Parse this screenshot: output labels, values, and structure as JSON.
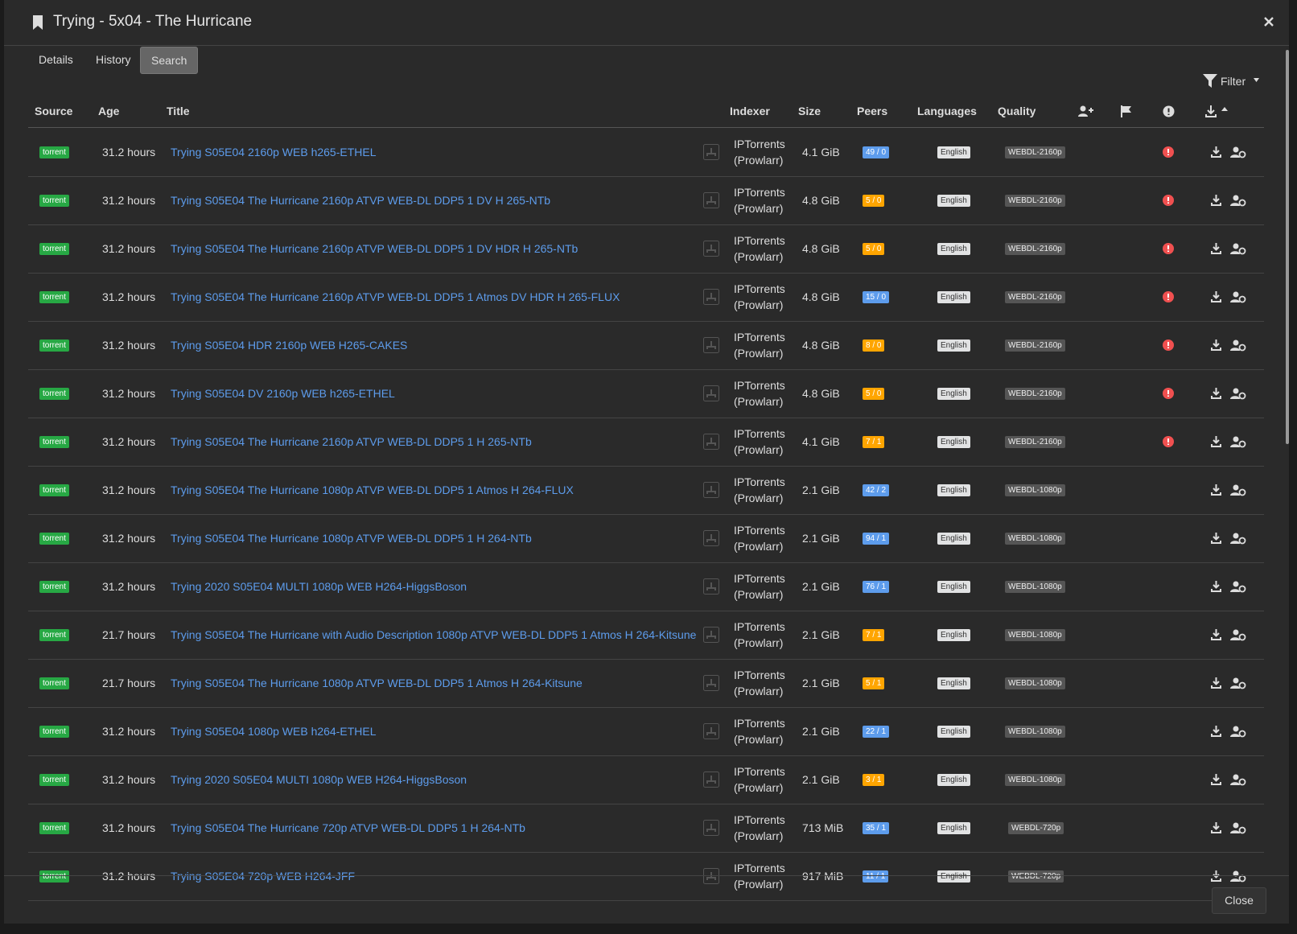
{
  "header": {
    "title": "Trying - 5x04 - The Hurricane"
  },
  "tabs": [
    "Details",
    "History",
    "Search"
  ],
  "filter": "Filter",
  "columns": [
    "Source",
    "Age",
    "Title",
    "Indexer",
    "Size",
    "Peers",
    "Languages",
    "Quality"
  ],
  "rows": [
    {
      "source": "torrent",
      "age": "31.2 hours",
      "title": "Trying S05E04 2160p WEB h265-ETHEL",
      "indexer": "IPTorrents (Prowlarr)",
      "size": "4.1 GiB",
      "peers": "49 / 0",
      "peers_color": "#5d9cec",
      "language": "English",
      "quality": "WEBDL-2160p",
      "rejected": true
    },
    {
      "source": "torrent",
      "age": "31.2 hours",
      "title": "Trying S05E04 The Hurricane 2160p ATVP WEB-DL DDP5 1 DV H 265-NTb",
      "indexer": "IPTorrents (Prowlarr)",
      "size": "4.8 GiB",
      "peers": "5 / 0",
      "peers_color": "#ffa500",
      "language": "English",
      "quality": "WEBDL-2160p",
      "rejected": true
    },
    {
      "source": "torrent",
      "age": "31.2 hours",
      "title": "Trying S05E04 The Hurricane 2160p ATVP WEB-DL DDP5 1 DV HDR H 265-NTb",
      "indexer": "IPTorrents (Prowlarr)",
      "size": "4.8 GiB",
      "peers": "5 / 0",
      "peers_color": "#ffa500",
      "language": "English",
      "quality": "WEBDL-2160p",
      "rejected": true
    },
    {
      "source": "torrent",
      "age": "31.2 hours",
      "title": "Trying S05E04 The Hurricane 2160p ATVP WEB-DL DDP5 1 Atmos DV HDR H 265-FLUX",
      "indexer": "IPTorrents (Prowlarr)",
      "size": "4.8 GiB",
      "peers": "15 / 0",
      "peers_color": "#5d9cec",
      "language": "English",
      "quality": "WEBDL-2160p",
      "rejected": true
    },
    {
      "source": "torrent",
      "age": "31.2 hours",
      "title": "Trying S05E04 HDR 2160p WEB H265-CAKES",
      "indexer": "IPTorrents (Prowlarr)",
      "size": "4.8 GiB",
      "peers": "8 / 0",
      "peers_color": "#ffa500",
      "language": "English",
      "quality": "WEBDL-2160p",
      "rejected": true
    },
    {
      "source": "torrent",
      "age": "31.2 hours",
      "title": "Trying S05E04 DV 2160p WEB h265-ETHEL",
      "indexer": "IPTorrents (Prowlarr)",
      "size": "4.8 GiB",
      "peers": "5 / 0",
      "peers_color": "#ffa500",
      "language": "English",
      "quality": "WEBDL-2160p",
      "rejected": true
    },
    {
      "source": "torrent",
      "age": "31.2 hours",
      "title": "Trying S05E04 The Hurricane 2160p ATVP WEB-DL DDP5 1 H 265-NTb",
      "indexer": "IPTorrents (Prowlarr)",
      "size": "4.1 GiB",
      "peers": "7 / 1",
      "peers_color": "#ffa500",
      "language": "English",
      "quality": "WEBDL-2160p",
      "rejected": true
    },
    {
      "source": "torrent",
      "age": "31.2 hours",
      "title": "Trying S05E04 The Hurricane 1080p ATVP WEB-DL DDP5 1 Atmos H 264-FLUX",
      "indexer": "IPTorrents (Prowlarr)",
      "size": "2.1 GiB",
      "peers": "42 / 2",
      "peers_color": "#5d9cec",
      "language": "English",
      "quality": "WEBDL-1080p",
      "rejected": false
    },
    {
      "source": "torrent",
      "age": "31.2 hours",
      "title": "Trying S05E04 The Hurricane 1080p ATVP WEB-DL DDP5 1 H 264-NTb",
      "indexer": "IPTorrents (Prowlarr)",
      "size": "2.1 GiB",
      "peers": "94 / 1",
      "peers_color": "#5d9cec",
      "language": "English",
      "quality": "WEBDL-1080p",
      "rejected": false
    },
    {
      "source": "torrent",
      "age": "31.2 hours",
      "title": "Trying 2020 S05E04 MULTI 1080p WEB H264-HiggsBoson",
      "indexer": "IPTorrents (Prowlarr)",
      "size": "2.1 GiB",
      "peers": "76 / 1",
      "peers_color": "#5d9cec",
      "language": "English",
      "quality": "WEBDL-1080p",
      "rejected": false
    },
    {
      "source": "torrent",
      "age": "21.7 hours",
      "title": "Trying S05E04 The Hurricane with Audio Description 1080p ATVP WEB-DL DDP5 1 Atmos H 264-Kitsune",
      "indexer": "IPTorrents (Prowlarr)",
      "size": "2.1 GiB",
      "peers": "7 / 1",
      "peers_color": "#ffa500",
      "language": "English",
      "quality": "WEBDL-1080p",
      "rejected": false
    },
    {
      "source": "torrent",
      "age": "21.7 hours",
      "title": "Trying S05E04 The Hurricane 1080p ATVP WEB-DL DDP5 1 Atmos H 264-Kitsune",
      "indexer": "IPTorrents (Prowlarr)",
      "size": "2.1 GiB",
      "peers": "5 / 1",
      "peers_color": "#ffa500",
      "language": "English",
      "quality": "WEBDL-1080p",
      "rejected": false
    },
    {
      "source": "torrent",
      "age": "31.2 hours",
      "title": "Trying S05E04 1080p WEB h264-ETHEL",
      "indexer": "IPTorrents (Prowlarr)",
      "size": "2.1 GiB",
      "peers": "22 / 1",
      "peers_color": "#5d9cec",
      "language": "English",
      "quality": "WEBDL-1080p",
      "rejected": false
    },
    {
      "source": "torrent",
      "age": "31.2 hours",
      "title": "Trying 2020 S05E04 MULTI 1080p WEB H264-HiggsBoson",
      "indexer": "IPTorrents (Prowlarr)",
      "size": "2.1 GiB",
      "peers": "3 / 1",
      "peers_color": "#ffa500",
      "language": "English",
      "quality": "WEBDL-1080p",
      "rejected": false
    },
    {
      "source": "torrent",
      "age": "31.2 hours",
      "title": "Trying S05E04 The Hurricane 720p ATVP WEB-DL DDP5 1 H 264-NTb",
      "indexer": "IPTorrents (Prowlarr)",
      "size": "713 MiB",
      "peers": "35 / 1",
      "peers_color": "#5d9cec",
      "language": "English",
      "quality": "WEBDL-720p",
      "rejected": false
    },
    {
      "source": "torrent",
      "age": "31.2 hours",
      "title": "Trying S05E04 720p WEB H264-JFF",
      "indexer": "IPTorrents (Prowlarr)",
      "size": "917 MiB",
      "peers": "11 / 1",
      "peers_color": "#5d9cec",
      "language": "English",
      "quality": "WEBDL-720p",
      "rejected": false
    }
  ],
  "footer": {
    "close": "Close"
  }
}
